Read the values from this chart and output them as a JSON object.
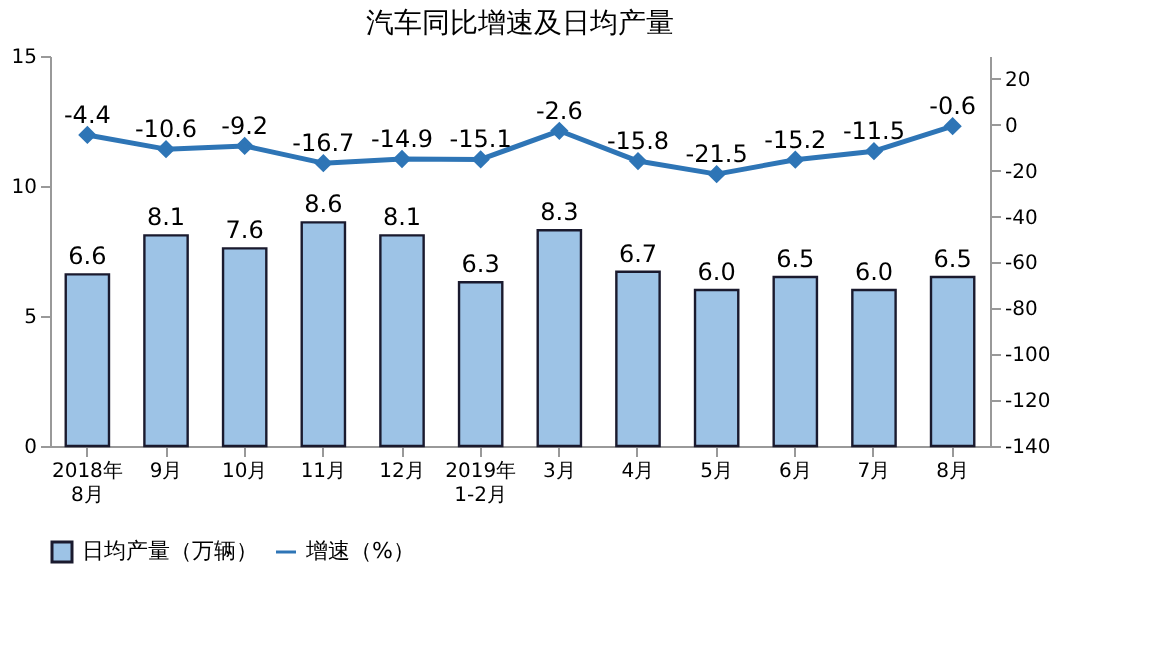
{
  "chart_data": {
    "type": "bar",
    "title": "汽车同比增速及日均产量",
    "categories": [
      "2018年\n8月",
      "9月",
      "10月",
      "11月",
      "12月",
      "2019年\n1-2月",
      "3月",
      "4月",
      "5月",
      "6月",
      "7月",
      "8月"
    ],
    "series": [
      {
        "name": "日均产量（万辆）",
        "color": "#9dc3e6",
        "values": [
          6.6,
          8.1,
          7.6,
          8.6,
          8.1,
          6.3,
          8.3,
          6.7,
          6.0,
          6.5,
          6.0,
          6.5
        ],
        "value_labels": [
          "6.6",
          "8.1",
          "7.6",
          "8.6",
          "8.1",
          "6.3",
          "8.3",
          "6.7",
          "6.0",
          "6.5",
          "6.0",
          "6.5"
        ]
      },
      {
        "name": "增速（%）",
        "type": "line",
        "axis": "y2",
        "color": "#2e75b6",
        "marker": "diamond",
        "values": [
          -4.4,
          -10.6,
          -9.2,
          -16.7,
          -14.9,
          -15.1,
          -2.6,
          -15.8,
          -21.5,
          -15.2,
          -11.5,
          -0.6
        ]
      }
    ],
    "ylim": [
      0,
      15
    ],
    "yticks": [
      0,
      5,
      10,
      15
    ],
    "y2lim": [
      -140,
      30
    ],
    "y2ticks": [
      -140,
      -120,
      -100,
      -80,
      -60,
      -40,
      -20,
      0,
      20
    ],
    "data_labels": true,
    "grid": false,
    "legend": "bottom"
  }
}
